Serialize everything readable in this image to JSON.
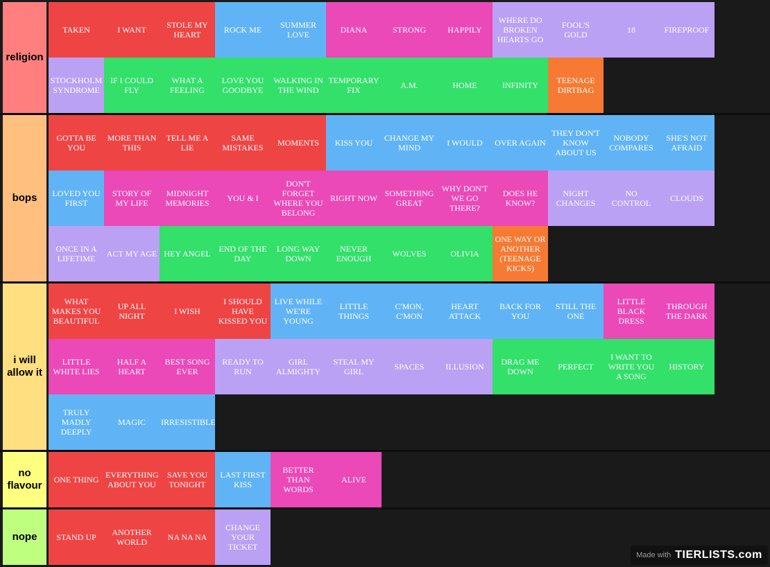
{
  "colors": {
    "red": "#ef4444",
    "blue": "#60b4f5",
    "pink": "#eb48b8",
    "purple": "#bba1f4",
    "green": "#32e06a",
    "orange": "#f67a33"
  },
  "watermark": {
    "made_with": "Made with",
    "logo": "TIERLISTS.com"
  },
  "tiers": [
    {
      "label": "religion",
      "color": "#ff7f7f",
      "rows": 2,
      "items": [
        {
          "title": "TAKEN",
          "color": "red"
        },
        {
          "title": "I WANT",
          "color": "red"
        },
        {
          "title": "STOLE MY HEART",
          "color": "red"
        },
        {
          "title": "ROCK ME",
          "color": "blue"
        },
        {
          "title": "SUMMER LOVE",
          "color": "blue"
        },
        {
          "title": "DIANA",
          "color": "pink"
        },
        {
          "title": "STRONG",
          "color": "pink"
        },
        {
          "title": "HAPPILY",
          "color": "pink"
        },
        {
          "title": "WHERE DO BROKEN HEARTS GO",
          "color": "purple"
        },
        {
          "title": "FOOL'S GOLD",
          "color": "purple"
        },
        {
          "title": "18",
          "color": "purple"
        },
        {
          "title": "FIREPROOF",
          "color": "purple"
        },
        {
          "title": "STOCKHOLM SYNDROME",
          "color": "purple"
        },
        {
          "title": "IF I COULD FLY",
          "color": "green"
        },
        {
          "title": "WHAT A FEELING",
          "color": "green"
        },
        {
          "title": "LOVE YOU GOODBYE",
          "color": "green"
        },
        {
          "title": "WALKING IN THE WIND",
          "color": "green"
        },
        {
          "title": "TEMPORARY FIX",
          "color": "green"
        },
        {
          "title": "A.M.",
          "color": "green"
        },
        {
          "title": "HOME",
          "color": "green"
        },
        {
          "title": "INFINITY",
          "color": "green"
        },
        {
          "title": "TEENAGE DIRTBAG",
          "color": "orange"
        }
      ]
    },
    {
      "label": "bops",
      "color": "#ffbf7f",
      "rows": 3,
      "items": [
        {
          "title": "GOTTA BE YOU",
          "color": "red"
        },
        {
          "title": "MORE THAN THIS",
          "color": "red"
        },
        {
          "title": "TELL ME A LIE",
          "color": "red"
        },
        {
          "title": "SAME MISTAKES",
          "color": "red"
        },
        {
          "title": "MOMENTS",
          "color": "red"
        },
        {
          "title": "KISS YOU",
          "color": "blue"
        },
        {
          "title": "CHANGE MY MIND",
          "color": "blue"
        },
        {
          "title": "I WOULD",
          "color": "blue"
        },
        {
          "title": "OVER AGAIN",
          "color": "blue"
        },
        {
          "title": "THEY DON'T KNOW ABOUT US",
          "color": "blue"
        },
        {
          "title": "NOBODY COMPARES",
          "color": "blue"
        },
        {
          "title": "SHE'S NOT AFRAID",
          "color": "blue"
        },
        {
          "title": "LOVED YOU FIRST",
          "color": "blue"
        },
        {
          "title": "STORY OF MY LIFE",
          "color": "pink"
        },
        {
          "title": "MIDNIGHT MEMORIES",
          "color": "pink"
        },
        {
          "title": "YOU & I",
          "color": "pink"
        },
        {
          "title": "DON'T FORGET WHERE YOU BELONG",
          "color": "pink"
        },
        {
          "title": "RIGHT NOW",
          "color": "pink"
        },
        {
          "title": "SOMETHING GREAT",
          "color": "pink"
        },
        {
          "title": "WHY DON'T WE GO THERE?",
          "color": "pink"
        },
        {
          "title": "DOES HE KNOW?",
          "color": "pink"
        },
        {
          "title": "NIGHT CHANGES",
          "color": "purple"
        },
        {
          "title": "NO CONTROL",
          "color": "purple"
        },
        {
          "title": "CLOUDS",
          "color": "purple"
        },
        {
          "title": "ONCE IN A LIFETIME",
          "color": "purple"
        },
        {
          "title": "ACT MY AGE",
          "color": "purple"
        },
        {
          "title": "HEY ANGEL",
          "color": "green"
        },
        {
          "title": "END OF THE DAY",
          "color": "green"
        },
        {
          "title": "LONG WAY DOWN",
          "color": "green"
        },
        {
          "title": "NEVER ENOUGH",
          "color": "green"
        },
        {
          "title": "WOLVES",
          "color": "green"
        },
        {
          "title": "OLIVIA",
          "color": "green"
        },
        {
          "title": "ONE WAY OR ANOTHER (TEENAGE KICKS)",
          "color": "orange"
        }
      ]
    },
    {
      "label": "i will allow it",
      "color": "#ffdf7f",
      "rows": 3,
      "items": [
        {
          "title": "WHAT MAKES YOU BEAUTIFUL",
          "color": "red"
        },
        {
          "title": "UP ALL NIGHT",
          "color": "red"
        },
        {
          "title": "I WISH",
          "color": "red"
        },
        {
          "title": "I SHOULD HAVE KISSED YOU",
          "color": "red"
        },
        {
          "title": "LIVE WHILE WE'RE YOUNG",
          "color": "blue"
        },
        {
          "title": "LITTLE THINGS",
          "color": "blue"
        },
        {
          "title": "C'MON, C'MON",
          "color": "blue"
        },
        {
          "title": "HEART ATTACK",
          "color": "blue"
        },
        {
          "title": "BACK FOR YOU",
          "color": "blue"
        },
        {
          "title": "STILL THE ONE",
          "color": "blue"
        },
        {
          "title": "LITTLE BLACK DRESS",
          "color": "pink"
        },
        {
          "title": "THROUGH THE DARK",
          "color": "pink"
        },
        {
          "title": "LITTLE WHITE LIES",
          "color": "pink"
        },
        {
          "title": "HALF A HEART",
          "color": "pink"
        },
        {
          "title": "BEST SONG EVER",
          "color": "pink"
        },
        {
          "title": "READY TO RUN",
          "color": "purple"
        },
        {
          "title": "GIRL ALMIGHTY",
          "color": "purple"
        },
        {
          "title": "STEAL MY GIRL",
          "color": "purple"
        },
        {
          "title": "SPACES",
          "color": "purple"
        },
        {
          "title": "ILLUSION",
          "color": "purple"
        },
        {
          "title": "DRAG ME DOWN",
          "color": "green"
        },
        {
          "title": "PERFECT",
          "color": "green"
        },
        {
          "title": "I WANT TO WRITE YOU A SONG",
          "color": "green"
        },
        {
          "title": "HISTORY",
          "color": "green"
        },
        {
          "title": "TRULY MADLY DEEPLY",
          "color": "blue"
        },
        {
          "title": "MAGIC",
          "color": "blue"
        },
        {
          "title": "IRRESISTIBLE",
          "color": "blue"
        }
      ]
    },
    {
      "label": "no flavour",
      "color": "#ffff7f",
      "rows": 1,
      "items": [
        {
          "title": "ONE THING",
          "color": "red"
        },
        {
          "title": "EVERYTHING ABOUT YOU",
          "color": "red"
        },
        {
          "title": "SAVE YOU TONIGHT",
          "color": "red"
        },
        {
          "title": "LAST FIRST KISS",
          "color": "blue"
        },
        {
          "title": "BETTER THAN WORDS",
          "color": "pink"
        },
        {
          "title": "ALIVE",
          "color": "pink"
        }
      ]
    },
    {
      "label": "nope",
      "color": "#bfff7f",
      "rows": 1,
      "items": [
        {
          "title": "STAND UP",
          "color": "red"
        },
        {
          "title": "ANOTHER WORLD",
          "color": "red"
        },
        {
          "title": "NA NA NA",
          "color": "red"
        },
        {
          "title": "CHANGE YOUR TICKET",
          "color": "purple"
        }
      ]
    }
  ]
}
